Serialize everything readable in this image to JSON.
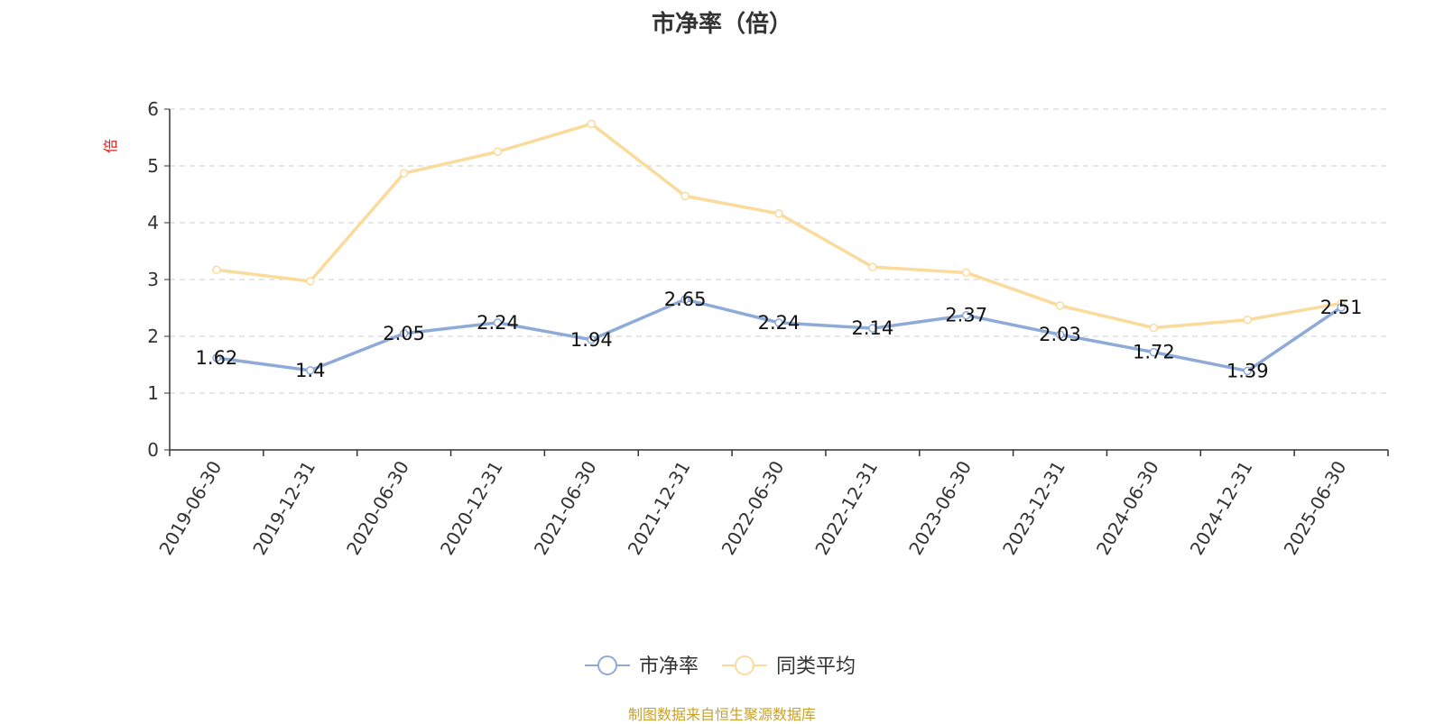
{
  "chart_data": {
    "type": "line",
    "title": "市净率（倍）",
    "ylabel": "倍",
    "xlabel": "",
    "ylim": [
      0,
      6
    ],
    "y_ticks": [
      "0",
      "1",
      "2",
      "3",
      "4",
      "5",
      "6"
    ],
    "grid": true,
    "legend_position": "bottom",
    "categories": [
      "2019-06-30",
      "2019-12-31",
      "2020-06-30",
      "2020-12-31",
      "2021-06-30",
      "2021-12-31",
      "2022-06-30",
      "2022-12-31",
      "2023-06-30",
      "2023-12-31",
      "2024-06-30",
      "2024-12-31",
      "2025-06-30"
    ],
    "series": [
      {
        "name": "市净率",
        "color": "#8eabd8",
        "show_labels": true,
        "values": [
          1.62,
          1.4,
          2.05,
          2.24,
          1.94,
          2.65,
          2.24,
          2.14,
          2.37,
          2.03,
          1.72,
          1.39,
          2.51
        ],
        "labels": [
          "1.62",
          "1.4",
          "2.05",
          "2.24",
          "1.94",
          "2.65",
          "2.24",
          "2.14",
          "2.37",
          "2.03",
          "1.72",
          "1.39",
          "2.51"
        ]
      },
      {
        "name": "同类平均",
        "color": "#fadb9b",
        "show_labels": false,
        "values": [
          3.17,
          2.97,
          4.87,
          5.25,
          5.74,
          4.47,
          4.16,
          3.22,
          3.12,
          2.54,
          2.15,
          2.29,
          2.58
        ]
      }
    ]
  },
  "footer": {
    "source": "制图数据来自恒生聚源数据库"
  },
  "colors": {
    "axis": "#333333",
    "grid": "#cccccc",
    "ylabel": "#e0201b",
    "source": "#c9a227"
  }
}
